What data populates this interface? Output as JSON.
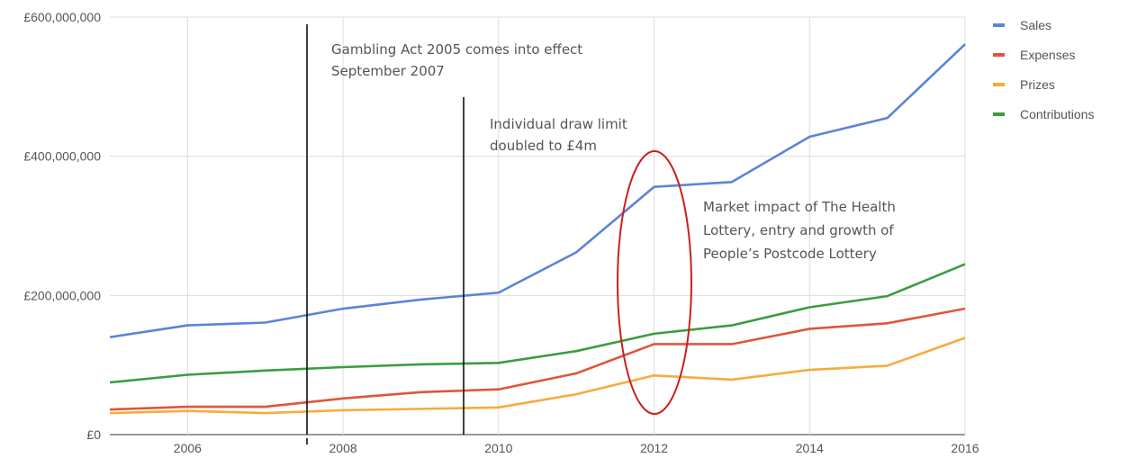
{
  "chart_data": {
    "type": "line",
    "x": [
      2005,
      2006,
      2007,
      2008,
      2009,
      2010,
      2011,
      2012,
      2013,
      2014,
      2015,
      2016
    ],
    "series": [
      {
        "name": "Sales",
        "color": "#5b84d8",
        "values": [
          140000000,
          157000000,
          161000000,
          181000000,
          194000000,
          204000000,
          262000000,
          356000000,
          363000000,
          428000000,
          455000000,
          561000000
        ]
      },
      {
        "name": "Expenses",
        "color": "#e0553b",
        "values": [
          36000000,
          40000000,
          40000000,
          52000000,
          61000000,
          65000000,
          88000000,
          130000000,
          130000000,
          152000000,
          160000000,
          181000000
        ]
      },
      {
        "name": "Prizes",
        "color": "#f6ac3c",
        "values": [
          31000000,
          34000000,
          31000000,
          35000000,
          37000000,
          39000000,
          58000000,
          85000000,
          79000000,
          93000000,
          99000000,
          139000000
        ]
      },
      {
        "name": "Contributions",
        "color": "#3a9d3f",
        "values": [
          75000000,
          86000000,
          92000000,
          97000000,
          101000000,
          103000000,
          120000000,
          145000000,
          157000000,
          183000000,
          199000000,
          245000000
        ]
      }
    ],
    "xlim": [
      2005,
      2016
    ],
    "xticks": [
      2006,
      2008,
      2010,
      2012,
      2014,
      2016
    ],
    "ylim": [
      0,
      600000000
    ],
    "yticks": [
      {
        "value": 0,
        "label": "£0"
      },
      {
        "value": 200000000,
        "label": "£200,000,000"
      },
      {
        "value": 400000000,
        "label": "£400,000,000"
      },
      {
        "value": 600000000,
        "label": "£600,000,000"
      }
    ],
    "grid": true,
    "legend": "right",
    "annotations": [
      {
        "lines": [
          "Gambling Act 2005 comes into effect",
          "September 2007"
        ],
        "color": "#5b8ee6"
      },
      {
        "lines": [
          "Individual draw limit",
          "doubled to £4m"
        ],
        "color": "#5b8ee6"
      },
      {
        "lines": [
          "Market impact of The Health",
          "Lottery, entry and growth of",
          "People’s Postcode Lottery"
        ],
        "color": "#cc1f1f"
      }
    ]
  }
}
